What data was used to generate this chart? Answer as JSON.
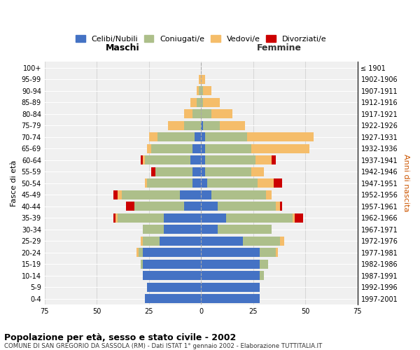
{
  "age_groups": [
    "0-4",
    "5-9",
    "10-14",
    "15-19",
    "20-24",
    "25-29",
    "30-34",
    "35-39",
    "40-44",
    "45-49",
    "50-54",
    "55-59",
    "60-64",
    "65-69",
    "70-74",
    "75-79",
    "80-84",
    "85-89",
    "90-94",
    "95-99",
    "100+"
  ],
  "birth_years": [
    "1997-2001",
    "1992-1996",
    "1987-1991",
    "1982-1986",
    "1977-1981",
    "1972-1976",
    "1967-1971",
    "1962-1966",
    "1957-1961",
    "1952-1956",
    "1947-1951",
    "1942-1946",
    "1937-1941",
    "1932-1936",
    "1927-1931",
    "1922-1926",
    "1917-1921",
    "1912-1916",
    "1907-1911",
    "1902-1906",
    "≤ 1901"
  ],
  "colors": {
    "celibe": "#4472C4",
    "coniugato": "#ADBF8A",
    "vedovo": "#F5BD6A",
    "divorziato": "#CC0000"
  },
  "male": {
    "celibe": [
      27,
      26,
      28,
      28,
      28,
      20,
      18,
      18,
      8,
      10,
      4,
      4,
      5,
      4,
      3,
      0,
      0,
      0,
      0,
      0,
      0
    ],
    "coniugato": [
      0,
      0,
      0,
      1,
      2,
      8,
      10,
      22,
      24,
      28,
      22,
      18,
      22,
      20,
      18,
      8,
      4,
      2,
      1,
      0,
      0
    ],
    "vedovo": [
      0,
      0,
      0,
      0,
      1,
      1,
      0,
      1,
      0,
      2,
      1,
      0,
      1,
      2,
      4,
      8,
      4,
      3,
      1,
      1,
      0
    ],
    "divorziato": [
      0,
      0,
      0,
      0,
      0,
      0,
      0,
      1,
      4,
      2,
      0,
      2,
      1,
      0,
      0,
      0,
      0,
      0,
      0,
      0,
      0
    ]
  },
  "female": {
    "celibe": [
      28,
      28,
      28,
      28,
      28,
      20,
      8,
      12,
      8,
      5,
      3,
      2,
      2,
      2,
      2,
      1,
      0,
      0,
      0,
      0,
      0
    ],
    "coniugato": [
      0,
      0,
      2,
      4,
      8,
      18,
      26,
      32,
      28,
      26,
      24,
      22,
      24,
      22,
      20,
      8,
      5,
      1,
      1,
      0,
      0
    ],
    "vedovo": [
      0,
      0,
      0,
      0,
      1,
      2,
      0,
      1,
      2,
      3,
      8,
      6,
      8,
      28,
      32,
      12,
      10,
      8,
      4,
      2,
      0
    ],
    "divorziato": [
      0,
      0,
      0,
      0,
      0,
      0,
      0,
      4,
      1,
      0,
      4,
      0,
      2,
      0,
      0,
      0,
      0,
      0,
      0,
      0,
      0
    ]
  },
  "xlim": 75,
  "title": "Popolazione per età, sesso e stato civile - 2002",
  "subtitle": "COMUNE DI SAN GREGORIO DA SASSOLA (RM) - Dati ISTAT 1° gennaio 2002 - Elaborazione TUTTITALIA.IT",
  "xlabel_left": "Maschi",
  "xlabel_right": "Femmine",
  "ylabel_left": "Fasce di età",
  "ylabel_right": "Anni di nascita",
  "bg_color": "#FFFFFF",
  "plot_bg_color": "#F0F0F0",
  "grid_color": "#CCCCCC",
  "legend_labels": [
    "Celibi/Nubili",
    "Coniugati/e",
    "Vedovi/e",
    "Divorziati/e"
  ]
}
